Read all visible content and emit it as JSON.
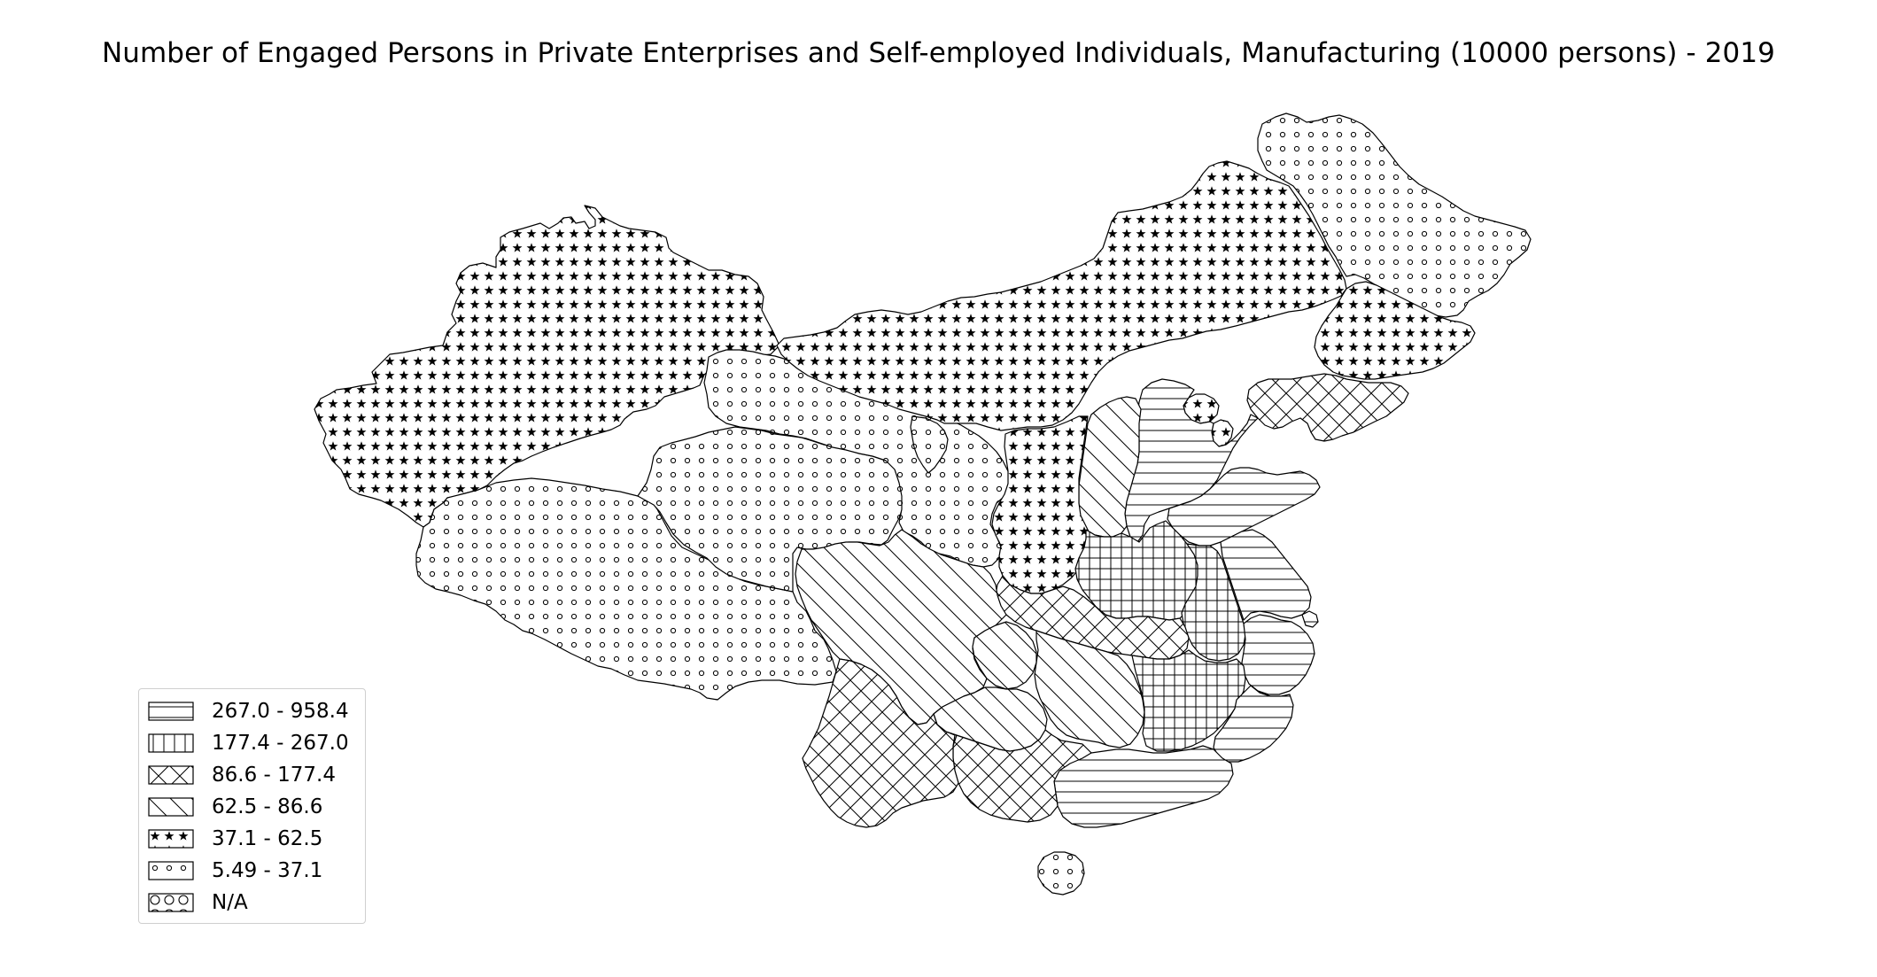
{
  "title": "Number of Engaged Persons in Private Enterprises and Self-employed Individuals, Manufacturing (10000 persons) - 2019",
  "legend": {
    "items": [
      {
        "label": "267.0 - 958.4",
        "pattern": "horizontal-lines"
      },
      {
        "label": "177.4 - 267.0",
        "pattern": "vertical-lines"
      },
      {
        "label": "86.6 - 177.4",
        "pattern": "crosshatch-diagonal"
      },
      {
        "label": "62.5 - 86.6",
        "pattern": "diagonal-lines"
      },
      {
        "label": "37.1 - 62.5",
        "pattern": "stars"
      },
      {
        "label": "5.49 - 37.1",
        "pattern": "small-circles"
      },
      {
        "label": "N/A",
        "pattern": "large-circles"
      }
    ]
  },
  "chart_data": {
    "type": "choropleth",
    "region": "China (provinces)",
    "year": "2019",
    "classes": [
      "267.0 - 958.4",
      "177.4 - 267.0",
      "86.6 - 177.4",
      "62.5 - 86.6",
      "37.1 - 62.5",
      "5.49 - 37.1",
      "N/A"
    ],
    "provinces": [
      {
        "name": "Xinjiang",
        "class": "37.1 - 62.5"
      },
      {
        "name": "Tibet",
        "class": "5.49 - 37.1"
      },
      {
        "name": "Qinghai",
        "class": "5.49 - 37.1"
      },
      {
        "name": "Gansu",
        "class": "5.49 - 37.1"
      },
      {
        "name": "Ningxia",
        "class": "5.49 - 37.1"
      },
      {
        "name": "Inner Mongolia",
        "class": "37.1 - 62.5"
      },
      {
        "name": "Heilongjiang",
        "class": "5.49 - 37.1"
      },
      {
        "name": "Jilin",
        "class": "37.1 - 62.5"
      },
      {
        "name": "Liaoning",
        "class": "86.6 - 177.4"
      },
      {
        "name": "Beijing",
        "class": "37.1 - 62.5"
      },
      {
        "name": "Tianjin",
        "class": "37.1 - 62.5"
      },
      {
        "name": "Hebei",
        "class": "267.0 - 958.4"
      },
      {
        "name": "Shanxi",
        "class": "62.5 - 86.6"
      },
      {
        "name": "Shaanxi",
        "class": "37.1 - 62.5"
      },
      {
        "name": "Shandong",
        "class": "267.0 - 958.4"
      },
      {
        "name": "Henan",
        "class": "177.4 - 267.0"
      },
      {
        "name": "Anhui",
        "class": "177.4 - 267.0"
      },
      {
        "name": "Jiangsu",
        "class": "267.0 - 958.4"
      },
      {
        "name": "Shanghai",
        "class": "267.0 - 958.4"
      },
      {
        "name": "Zhejiang",
        "class": "267.0 - 958.4"
      },
      {
        "name": "Hubei",
        "class": "86.6 - 177.4"
      },
      {
        "name": "Hunan",
        "class": "62.5 - 86.6"
      },
      {
        "name": "Jiangxi",
        "class": "177.4 - 267.0"
      },
      {
        "name": "Fujian",
        "class": "267.0 - 958.4"
      },
      {
        "name": "Guangdong",
        "class": "267.0 - 958.4"
      },
      {
        "name": "Guangxi",
        "class": "86.6 - 177.4"
      },
      {
        "name": "Hainan",
        "class": "5.49 - 37.1"
      },
      {
        "name": "Sichuan",
        "class": "62.5 - 86.6"
      },
      {
        "name": "Chongqing",
        "class": "62.5 - 86.6"
      },
      {
        "name": "Guizhou",
        "class": "62.5 - 86.6"
      },
      {
        "name": "Yunnan",
        "class": "86.6 - 177.4"
      }
    ]
  }
}
